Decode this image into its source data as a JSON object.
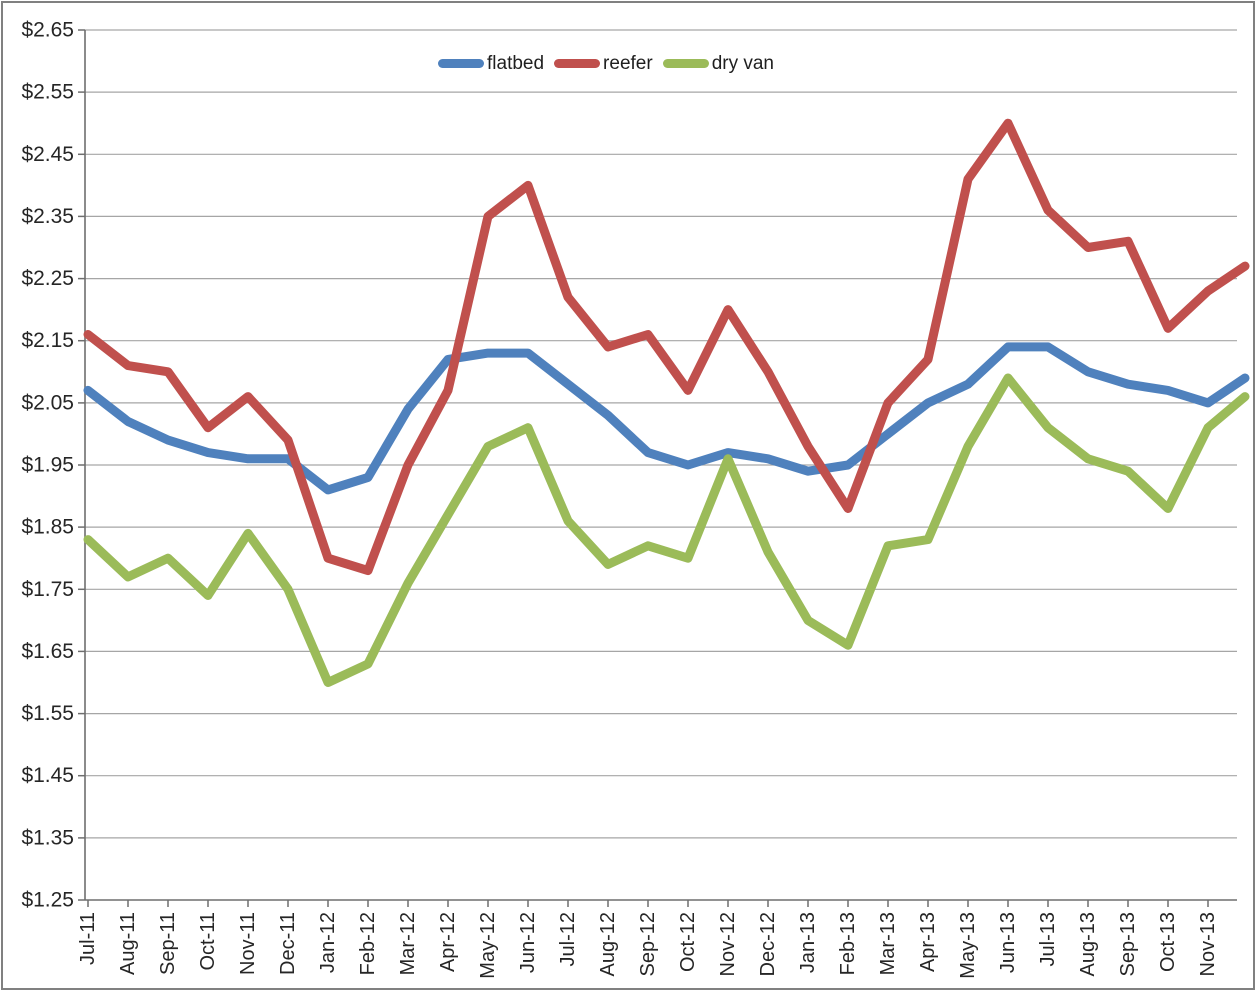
{
  "chart_data": {
    "type": "line",
    "title": "",
    "xlabel": "",
    "ylabel": "",
    "ylim": [
      1.25,
      2.65
    ],
    "ytick_step": 0.1,
    "currency_format": "$0.00",
    "grid": true,
    "legend_position": "top-center",
    "ytick_labels": [
      "$2.65",
      "$2.55",
      "$2.45",
      "$2.35",
      "$2.25",
      "$2.15",
      "$2.05",
      "$1.95",
      "$1.85",
      "$1.75",
      "$1.65",
      "$1.55",
      "$1.45",
      "$1.35",
      "$1.25"
    ],
    "categories": [
      "Jul-11",
      "Aug-11",
      "Sep-11",
      "Oct-11",
      "Nov-11",
      "Dec-11",
      "Jan-12",
      "Feb-12",
      "Mar-12",
      "Apr-12",
      "May-12",
      "Jun-12",
      "Jul-12",
      "Aug-12",
      "Sep-12",
      "Oct-12",
      "Nov-12",
      "Dec-12",
      "Jan-13",
      "Feb-13",
      "Mar-13",
      "Apr-13",
      "May-13",
      "Jun-13",
      "Jul-13",
      "Aug-13",
      "Sep-13",
      "Oct-13",
      "Nov-13"
    ],
    "series": [
      {
        "name": "flatbed",
        "color": "#4F81BD",
        "values": [
          2.07,
          2.02,
          1.99,
          1.97,
          1.96,
          1.96,
          1.91,
          1.93,
          2.04,
          2.12,
          2.13,
          2.13,
          2.08,
          2.03,
          1.97,
          1.95,
          1.97,
          1.96,
          1.94,
          1.95,
          2.0,
          2.05,
          2.08,
          2.14,
          2.14,
          2.1,
          2.08,
          2.07,
          2.05
        ],
        "edge_value": 2.09
      },
      {
        "name": "reefer",
        "color": "#C0504D",
        "values": [
          2.16,
          2.11,
          2.1,
          2.01,
          2.06,
          1.99,
          1.8,
          1.78,
          1.95,
          2.07,
          2.35,
          2.4,
          2.22,
          2.14,
          2.16,
          2.07,
          2.2,
          2.1,
          1.98,
          1.88,
          2.05,
          2.12,
          2.41,
          2.5,
          2.36,
          2.3,
          2.31,
          2.17,
          2.23
        ],
        "edge_value": 2.27
      },
      {
        "name": "dry van",
        "color": "#9BBB59",
        "values": [
          1.83,
          1.77,
          1.8,
          1.74,
          1.84,
          1.75,
          1.6,
          1.63,
          1.76,
          1.87,
          1.98,
          2.01,
          1.86,
          1.79,
          1.82,
          1.8,
          1.96,
          1.81,
          1.7,
          1.66,
          1.82,
          1.83,
          1.98,
          2.09,
          2.01,
          1.96,
          1.94,
          1.88,
          2.01
        ],
        "edge_value": 2.06
      }
    ]
  }
}
